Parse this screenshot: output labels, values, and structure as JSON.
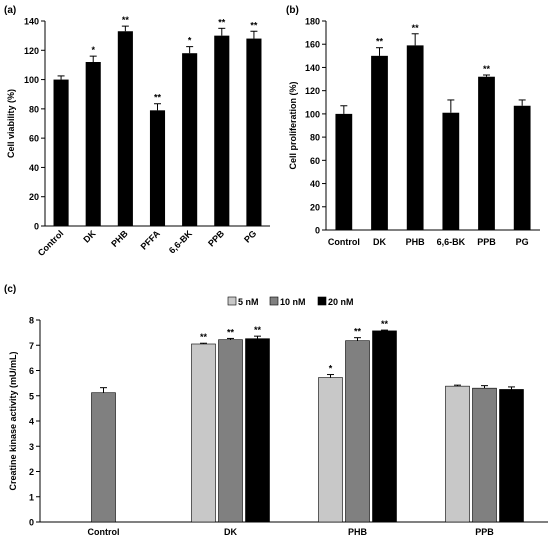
{
  "panel_labels": {
    "a": "(a)",
    "b": "(b)",
    "c": "(c)"
  },
  "chart_data": [
    {
      "panel": "a",
      "type": "bar",
      "ylabel": "Cell viability (%)",
      "ylim": [
        0,
        140
      ],
      "yticks": [
        0,
        20,
        40,
        60,
        80,
        100,
        120,
        140
      ],
      "categories": [
        "Control",
        "DK",
        "PHB",
        "PFFA",
        "6,6-BK",
        "PPB",
        "PG"
      ],
      "values": [
        100,
        112,
        133,
        79,
        118,
        130,
        128
      ],
      "errors": [
        2.5,
        4,
        3.5,
        4.5,
        4.5,
        5,
        5
      ],
      "annotations": [
        "",
        "*",
        "**",
        "**",
        "*",
        "**",
        "**"
      ],
      "colors": [
        "#000000",
        "#000000",
        "#000000",
        "#000000",
        "#000000",
        "#000000",
        "#000000"
      ],
      "grid": false
    },
    {
      "panel": "b",
      "type": "bar",
      "ylabel": "Cell proliferation (%)",
      "ylim": [
        0,
        180
      ],
      "yticks": [
        0,
        20,
        40,
        60,
        80,
        100,
        120,
        140,
        160,
        180
      ],
      "categories": [
        "Control",
        "DK",
        "PHB",
        "6,6-BK",
        "PPB",
        "PG"
      ],
      "values": [
        100,
        150,
        159,
        101,
        132,
        107
      ],
      "errors": [
        7,
        7,
        10,
        11,
        1.5,
        5
      ],
      "annotations": [
        "",
        "**",
        "**",
        "",
        "**",
        ""
      ],
      "colors": [
        "#000000",
        "#000000",
        "#000000",
        "#000000",
        "#000000",
        "#000000"
      ],
      "grid": false
    },
    {
      "panel": "c",
      "type": "bar",
      "ylabel": "Creatine kinase activity (mU/mL)",
      "ylim": [
        0,
        8
      ],
      "yticks": [
        0,
        1,
        2,
        3,
        4,
        5,
        6,
        7,
        8
      ],
      "categories": [
        "Control",
        "DK",
        "PHB",
        "PPB"
      ],
      "series": [
        {
          "name": "5 nM",
          "color": "#c8c8c8",
          "values": [
            null,
            7.05,
            5.72,
            5.38
          ],
          "errors": [
            null,
            0.03,
            0.12,
            0.04
          ],
          "annotations": [
            "",
            "**",
            "*",
            ""
          ]
        },
        {
          "name": "10 nM",
          "color": "#808080",
          "values": [
            5.12,
            7.22,
            7.18,
            5.3
          ],
          "errors": [
            0.2,
            0.05,
            0.12,
            0.1
          ],
          "annotations": [
            "",
            "**",
            "**",
            ""
          ]
        },
        {
          "name": "20 nM",
          "color": "#000000",
          "values": [
            null,
            7.26,
            7.57,
            5.25
          ],
          "errors": [
            null,
            0.1,
            0.03,
            0.1
          ],
          "annotations": [
            "",
            "**",
            "**",
            ""
          ]
        }
      ],
      "legend_position": "top-center",
      "grid": false
    }
  ]
}
